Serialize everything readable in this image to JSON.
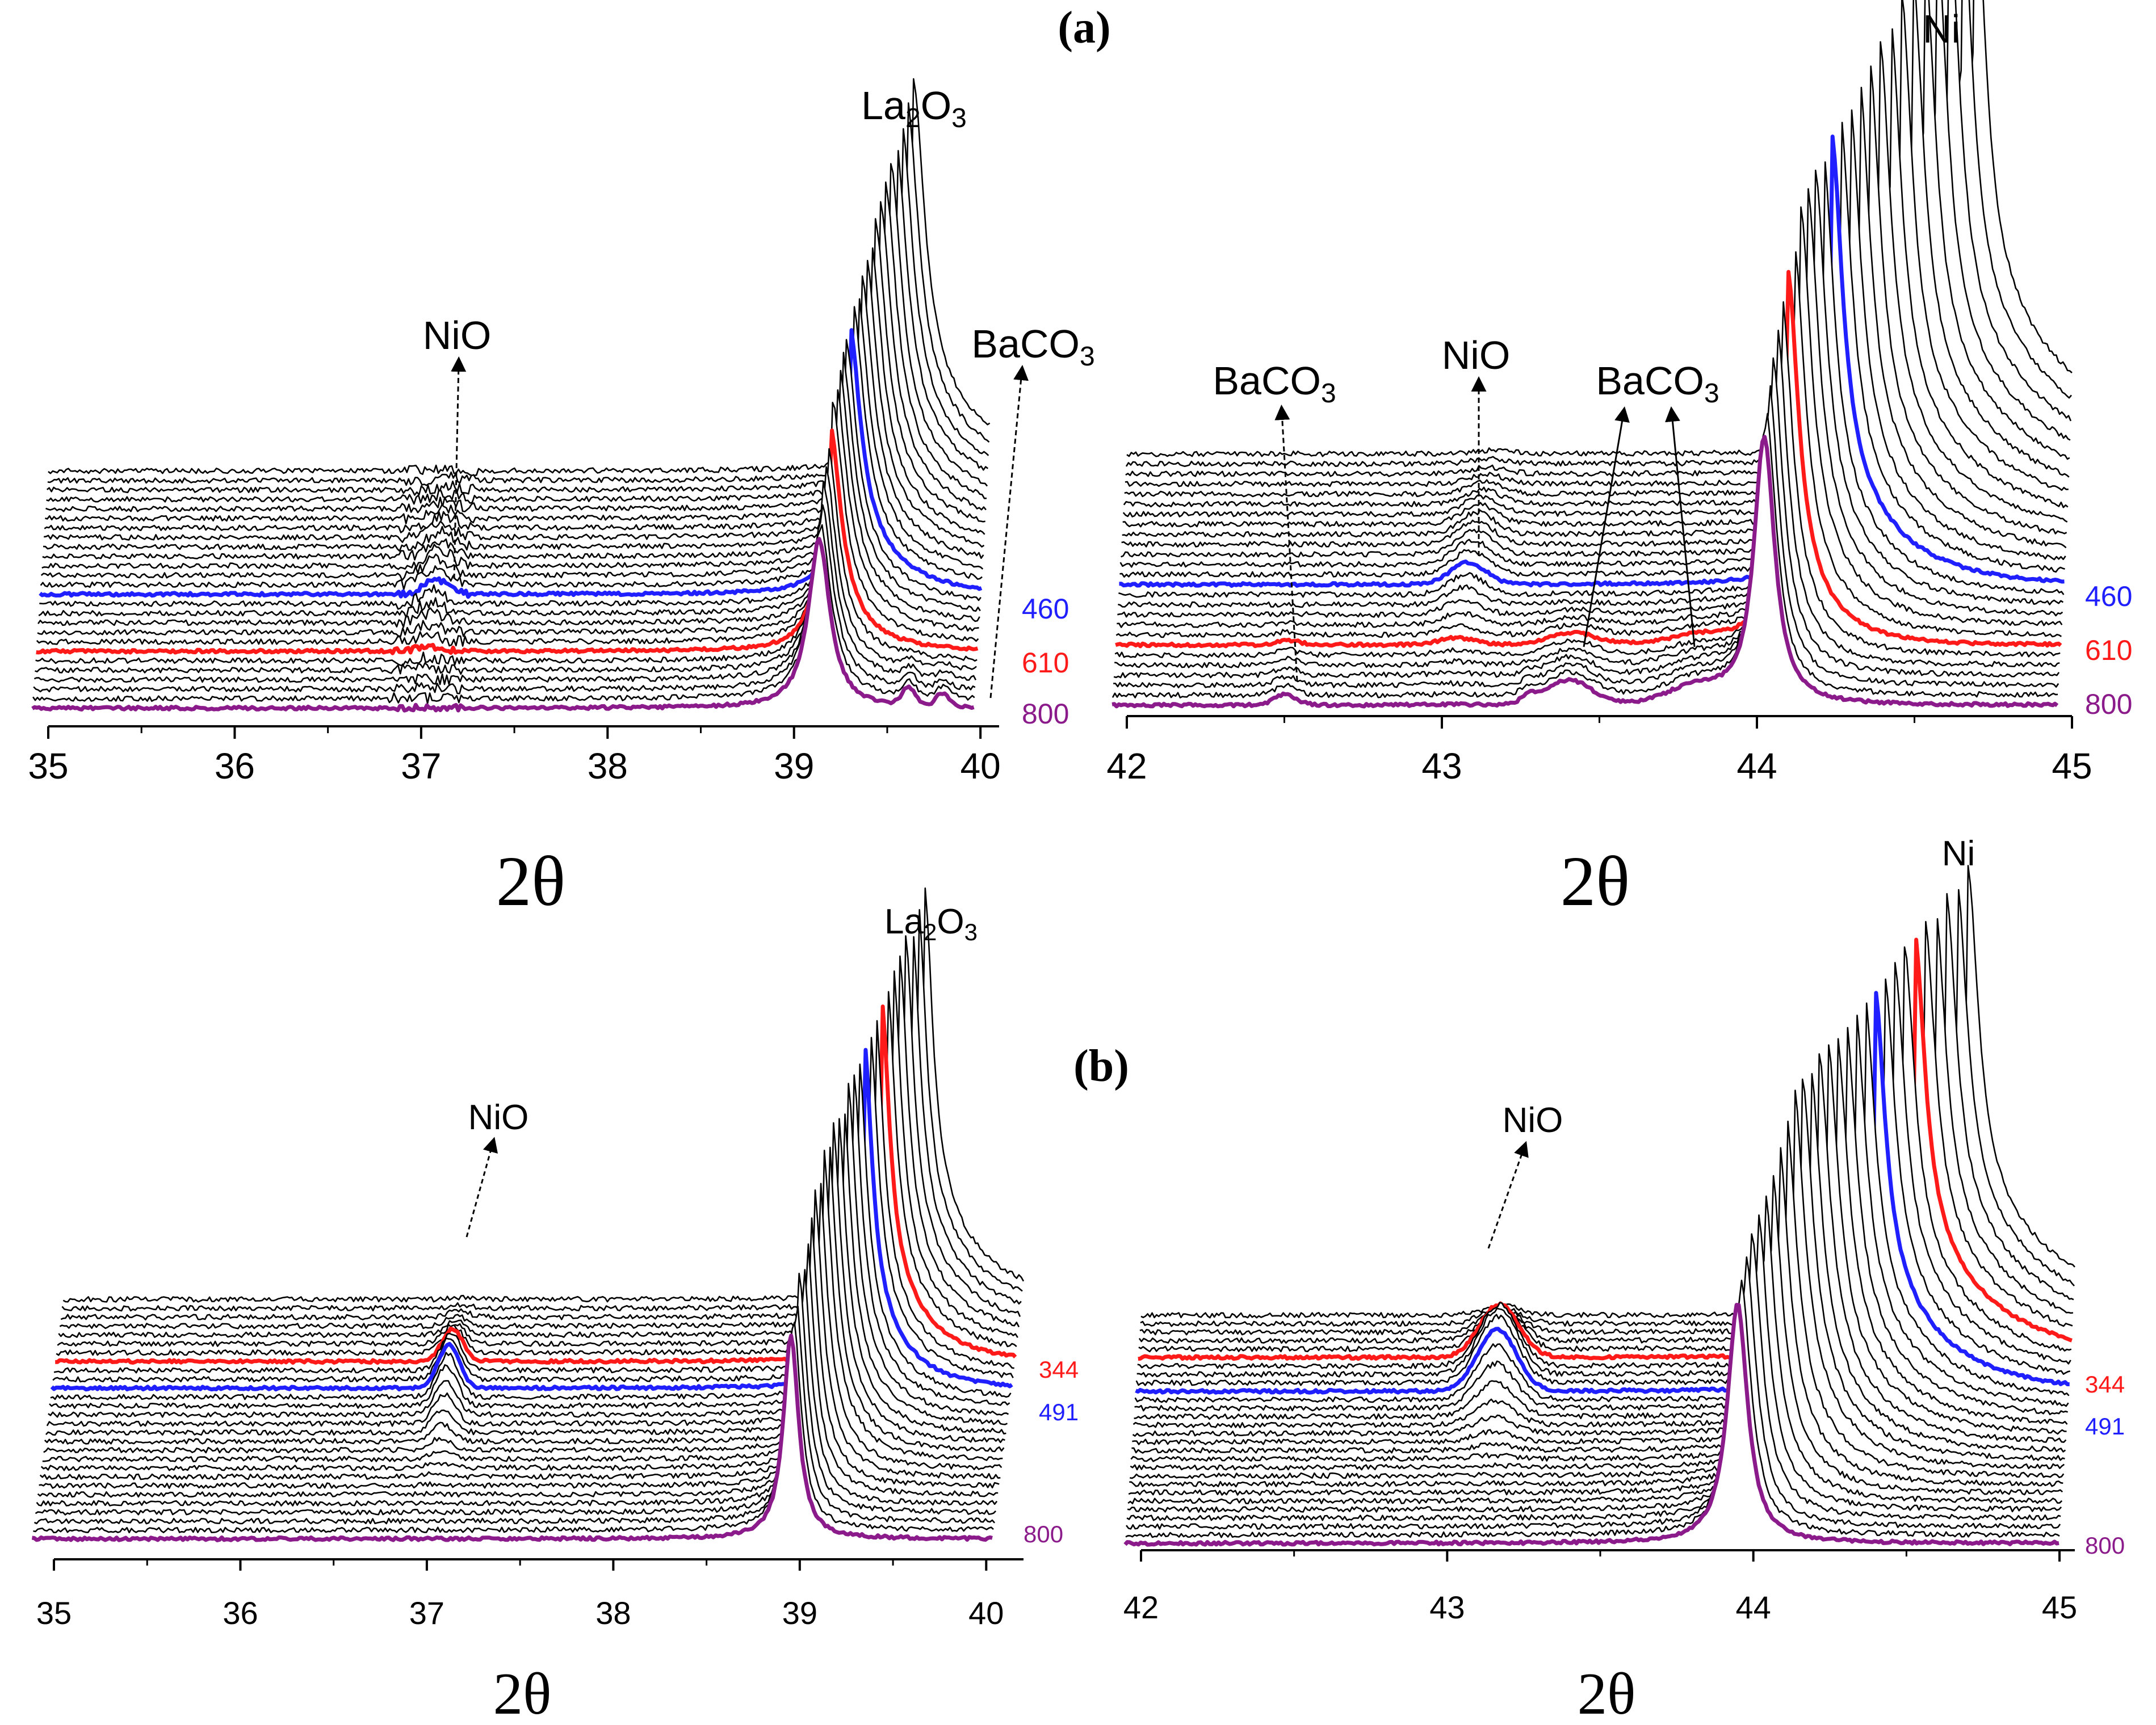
{
  "figure": {
    "panel_labels": [
      "(a)",
      "(b)"
    ]
  },
  "chart_data": [
    {
      "type": "line",
      "panel": "(a)",
      "subplot": "left",
      "xlabel": "2θ",
      "xlim": [
        35,
        40.1
      ],
      "xticks": [
        35,
        36,
        37,
        38,
        39,
        40
      ],
      "n_traces": 26,
      "peaks": [
        {
          "name": "NiO",
          "x": 37.1
        },
        {
          "name": "La2O3",
          "x": 39.3
        },
        {
          "name": "BaCO3",
          "x": 39.8
        }
      ],
      "annotations": [
        {
          "base": "NiO",
          "sub": ""
        },
        {
          "base": "La",
          "sub": "2",
          "base2": "O",
          "sub2": "3"
        },
        {
          "base": "BaCO",
          "sub": "3"
        }
      ],
      "highlighted": [
        {
          "label": "460",
          "color": "#1f1fff"
        },
        {
          "label": "610",
          "color": "#ff1a1a"
        },
        {
          "label": "800",
          "color": "#8b1a8b"
        }
      ]
    },
    {
      "type": "line",
      "panel": "(a)",
      "subplot": "right",
      "xlabel": "2θ",
      "xlim": [
        42,
        45
      ],
      "xticks": [
        42,
        43,
        44,
        45
      ],
      "n_traces": 26,
      "peaks": [
        {
          "name": "BaCO3",
          "x": 42.5
        },
        {
          "name": "NiO",
          "x": 43.1
        },
        {
          "name": "BaCO3",
          "x": 43.5
        },
        {
          "name": "BaCO3",
          "x": 43.9
        },
        {
          "name": "Ni",
          "x": 44.3
        }
      ],
      "annotations": [
        {
          "base": "BaCO",
          "sub": "3"
        },
        {
          "base": "NiO",
          "sub": ""
        },
        {
          "base": "BaCO",
          "sub": "3"
        },
        {
          "base": "Ni",
          "sub": ""
        }
      ],
      "highlighted": [
        {
          "label": "460",
          "color": "#1f1fff"
        },
        {
          "label": "610",
          "color": "#ff1a1a"
        },
        {
          "label": "800",
          "color": "#8b1a8b"
        }
      ]
    },
    {
      "type": "line",
      "panel": "(b)",
      "subplot": "left",
      "xlabel": "2θ",
      "xlim": [
        35,
        40.2
      ],
      "xticks": [
        35,
        36,
        37,
        38,
        39,
        40
      ],
      "n_traces": 28,
      "peaks": [
        {
          "name": "NiO",
          "x": 37.2
        },
        {
          "name": "La2O3",
          "x": 39.2
        }
      ],
      "annotations": [
        {
          "base": "NiO",
          "sub": ""
        },
        {
          "base": "La",
          "sub": "2",
          "base2": "O",
          "sub2": "3"
        }
      ],
      "highlighted": [
        {
          "label": "344",
          "color": "#ff1a1a"
        },
        {
          "label": "491",
          "color": "#1f1fff"
        },
        {
          "label": "800",
          "color": "#8b1a8b"
        }
      ]
    },
    {
      "type": "line",
      "panel": "(b)",
      "subplot": "right",
      "xlabel": "2θ",
      "xlim": [
        42,
        45.05
      ],
      "xticks": [
        42,
        43,
        44,
        45
      ],
      "n_traces": 28,
      "peaks": [
        {
          "name": "NiO",
          "x": 43.2
        },
        {
          "name": "Ni",
          "x": 44.0
        }
      ],
      "annotations": [
        {
          "base": "NiO",
          "sub": ""
        },
        {
          "base": "Ni",
          "sub": ""
        }
      ],
      "highlighted": [
        {
          "label": "344",
          "color": "#ff1a1a"
        },
        {
          "label": "491",
          "color": "#1f1fff"
        },
        {
          "label": "800",
          "color": "#8b1a8b"
        }
      ]
    }
  ]
}
